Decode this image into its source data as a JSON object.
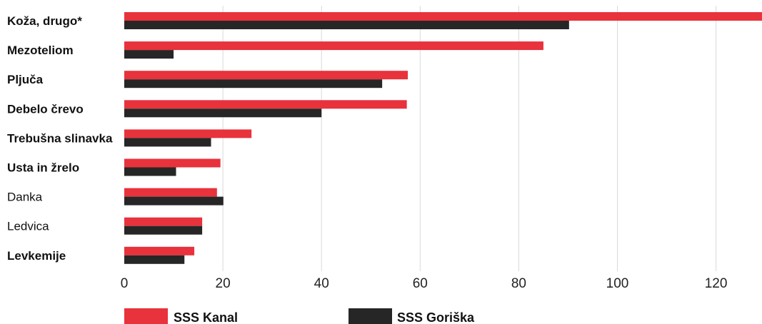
{
  "chart_data": {
    "type": "bar",
    "orientation": "horizontal",
    "categories": [
      "Koža, drugo*",
      "Mezoteliom",
      "Pljuča",
      "Debelo črevo",
      "Trebušna slinavka",
      "Usta in žrelo",
      "Danka",
      "Ledvica",
      "Levkemije"
    ],
    "bold_categories": [
      "Koža, drugo*",
      "Mezoteliom",
      "Pljuča",
      "Debelo črevo",
      "Trebušna slinavka",
      "Usta in žrelo",
      "Levkemije"
    ],
    "series": [
      {
        "name": "SSS Kanal",
        "color": "#e8323c",
        "values": [
          130,
          85,
          57.5,
          57.3,
          25.8,
          19.5,
          18.8,
          15.8,
          14.2
        ]
      },
      {
        "name": "SSS Goriška",
        "color": "#262626",
        "values": [
          90.2,
          10,
          52.3,
          40,
          17.6,
          10.5,
          20.1,
          15.8,
          12.2
        ]
      }
    ],
    "xticks": [
      0,
      20,
      40,
      60,
      80,
      100,
      120
    ],
    "xlim": [
      0,
      129.5
    ],
    "grid": true,
    "legend_position": "bottom-left",
    "title": "",
    "xlabel": "",
    "ylabel": ""
  }
}
